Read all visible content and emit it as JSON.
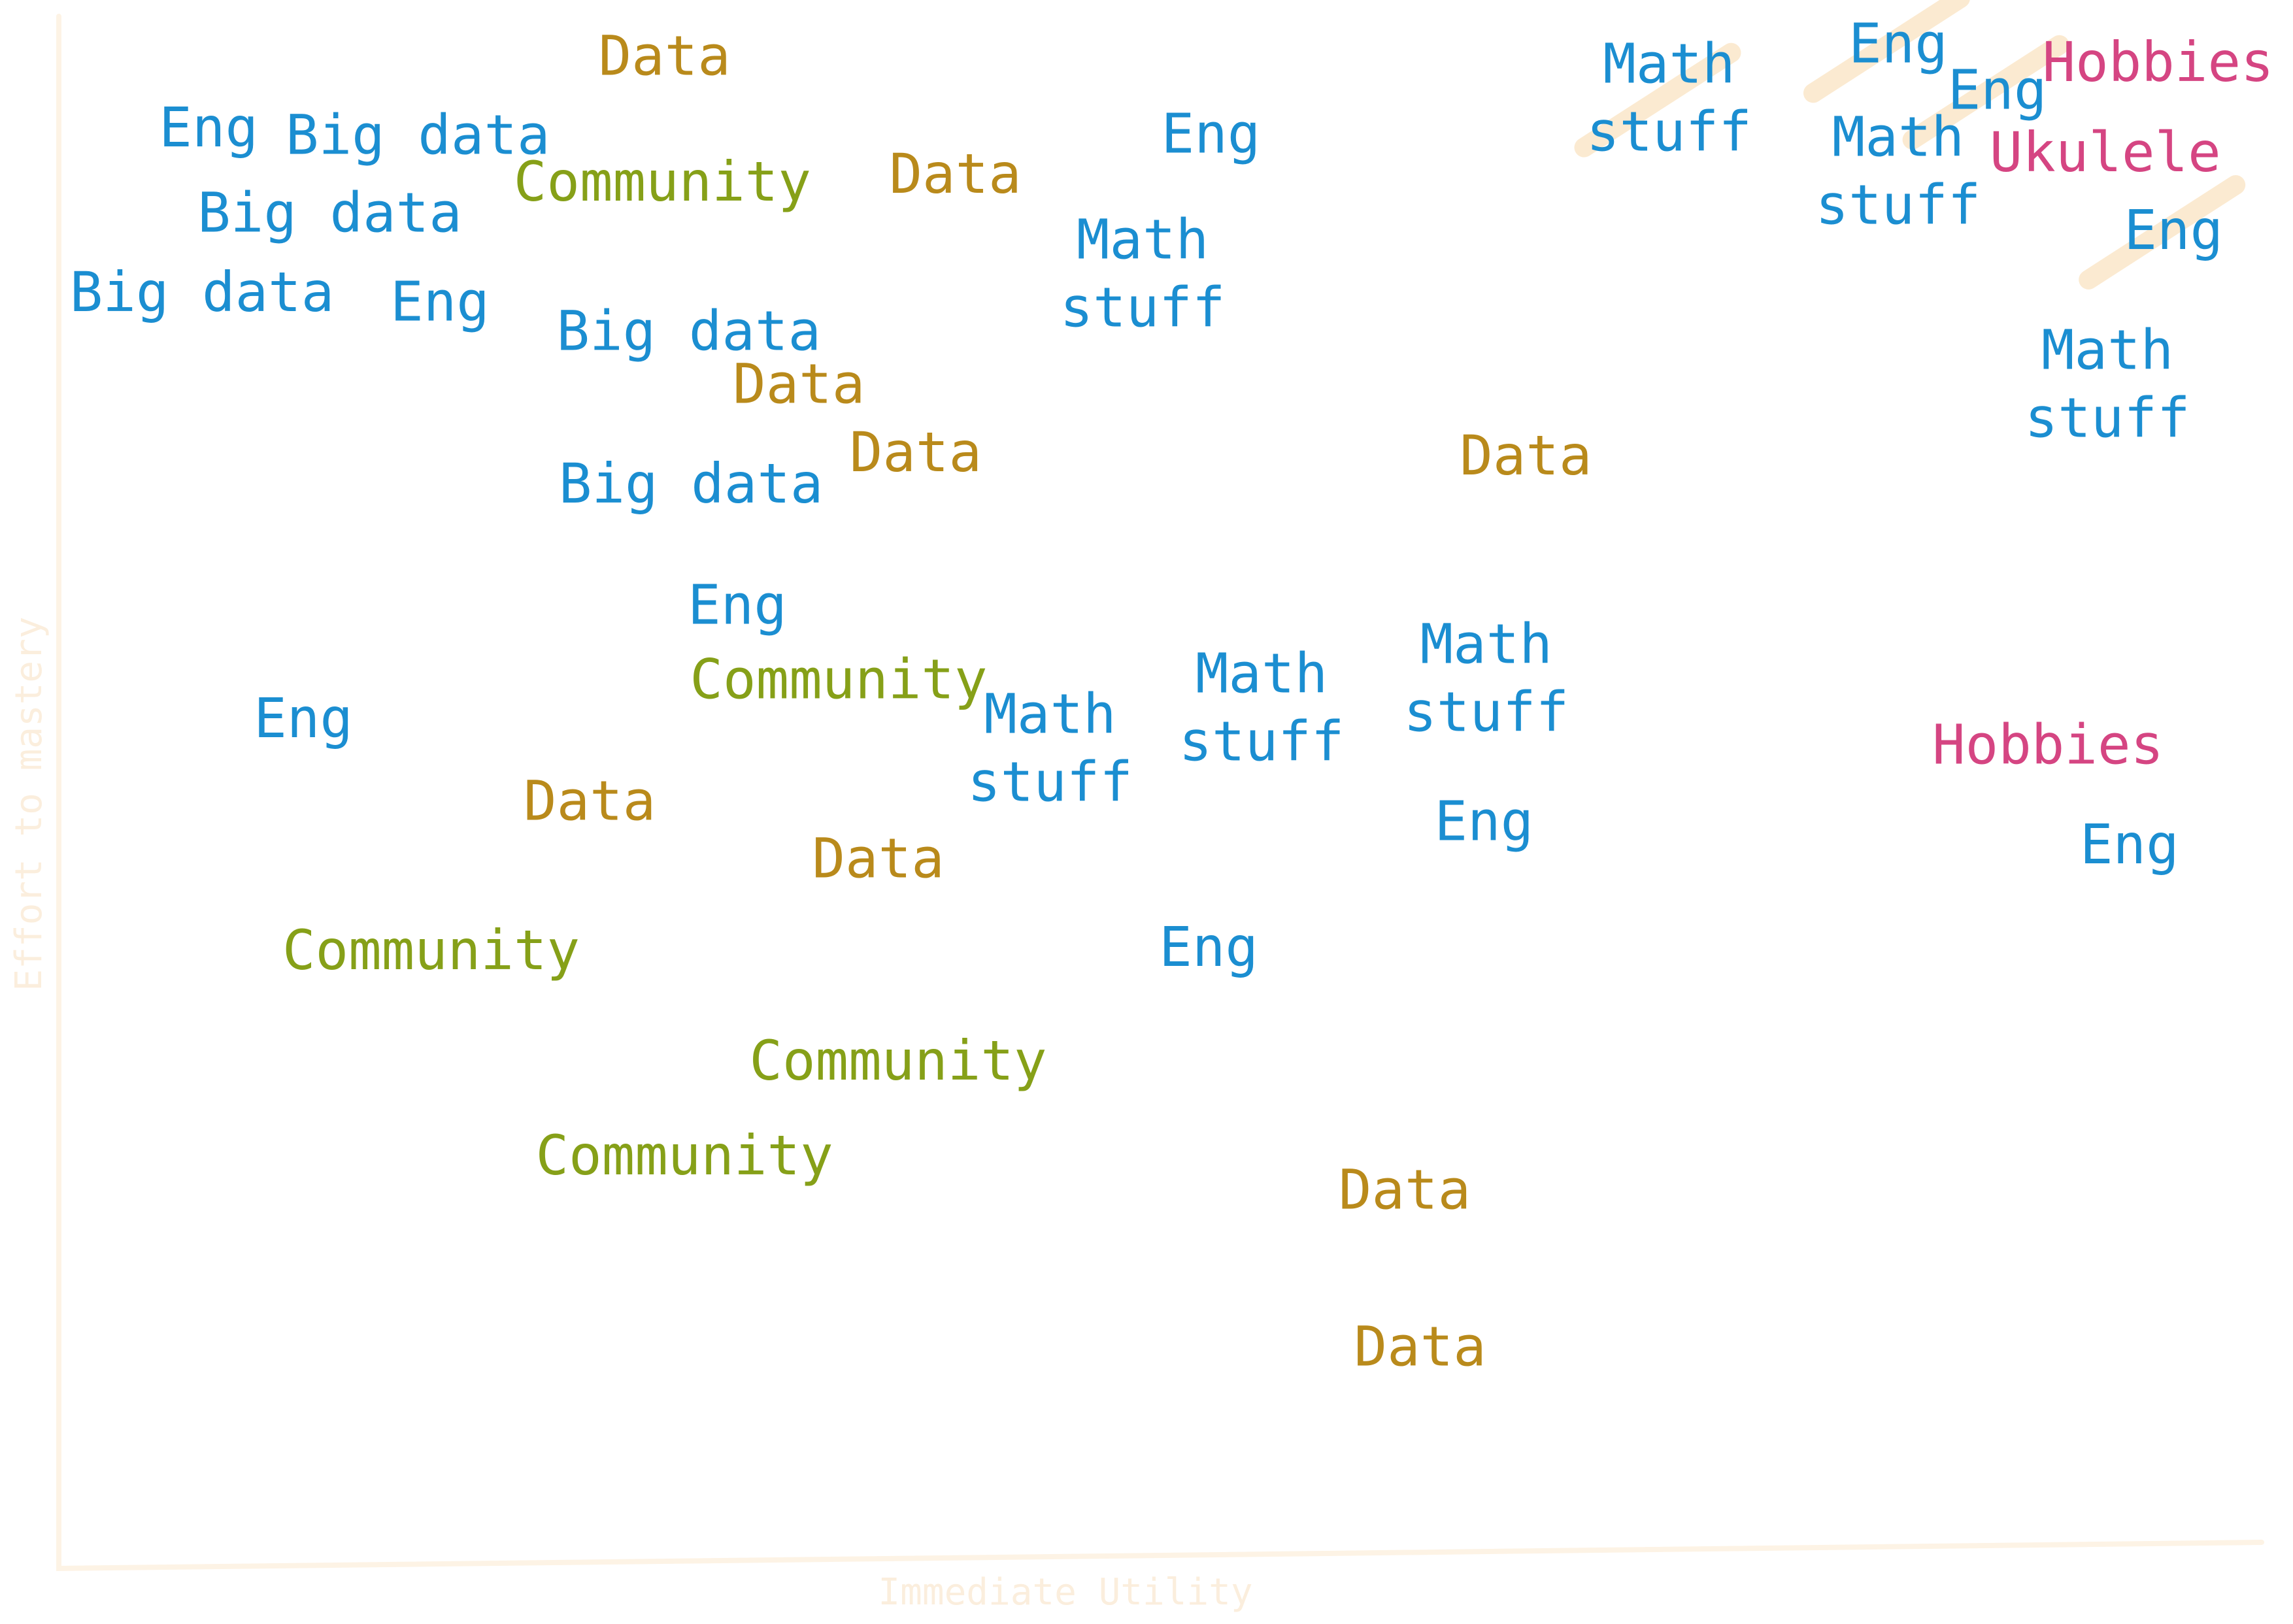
{
  "chart_data": {
    "type": "scatter",
    "title": "",
    "xlabel": "Immediate Utility",
    "ylabel": "Effort to mastery",
    "xlim": [
      0,
      100
    ],
    "ylim": [
      0,
      100
    ],
    "grid": false,
    "legend": "none",
    "colors": {
      "Eng": "#1b8ed1",
      "Big data": "#1b8ed1",
      "Math stuff": "#1b8ed1",
      "Data": "#b98a1b",
      "Community": "#86a018",
      "Hobbies": "#d54582",
      "Ukulele": "#d54582",
      "axis": "#fdf3e5",
      "highlight": "#fbe6c6"
    },
    "points": [
      {
        "label": "Data",
        "x": 27.5,
        "y": 97.0
      },
      {
        "label": "Eng",
        "x": 6.8,
        "y": 92.4
      },
      {
        "label": "Big data",
        "x": 16.3,
        "y": 91.9
      },
      {
        "label": "Community",
        "x": 27.4,
        "y": 88.9
      },
      {
        "label": "Data",
        "x": 40.7,
        "y": 89.4
      },
      {
        "label": "Eng",
        "x": 52.3,
        "y": 92.0
      },
      {
        "label": "Math stuff",
        "x": 73.1,
        "y": 94.3,
        "highlighted": true
      },
      {
        "label": "Eng",
        "x": 83.5,
        "y": 97.8,
        "highlighted": true
      },
      {
        "label": "Eng",
        "x": 88.0,
        "y": 94.8,
        "highlighted": true
      },
      {
        "label": "Hobbies",
        "x": 95.3,
        "y": 96.6
      },
      {
        "label": "Big data",
        "x": 12.3,
        "y": 86.9
      },
      {
        "label": "Math stuff",
        "x": 49.2,
        "y": 83.0
      },
      {
        "label": "Math stuff",
        "x": 83.5,
        "y": 89.6
      },
      {
        "label": "Ukulele",
        "x": 92.9,
        "y": 90.8
      },
      {
        "label": "Eng",
        "x": 96.0,
        "y": 85.8,
        "highlighted": true
      },
      {
        "label": "Big data",
        "x": 6.5,
        "y": 81.8
      },
      {
        "label": "Eng",
        "x": 17.3,
        "y": 81.2
      },
      {
        "label": "Big data",
        "x": 28.6,
        "y": 79.3
      },
      {
        "label": "Data",
        "x": 33.6,
        "y": 75.9
      },
      {
        "label": "Data",
        "x": 38.9,
        "y": 71.5
      },
      {
        "label": "Data",
        "x": 66.6,
        "y": 71.3
      },
      {
        "label": "Big data",
        "x": 28.7,
        "y": 69.5
      },
      {
        "label": "Math stuff",
        "x": 93.0,
        "y": 75.9
      },
      {
        "label": "Eng",
        "x": 30.8,
        "y": 61.7
      },
      {
        "label": "Community",
        "x": 35.4,
        "y": 56.9
      },
      {
        "label": "Eng",
        "x": 11.1,
        "y": 54.4
      },
      {
        "label": "Math stuff",
        "x": 45.0,
        "y": 52.5
      },
      {
        "label": "Math stuff",
        "x": 54.6,
        "y": 55.1
      },
      {
        "label": "Math stuff",
        "x": 64.8,
        "y": 57.0
      },
      {
        "label": "Hobbies",
        "x": 90.3,
        "y": 52.7
      },
      {
        "label": "Data",
        "x": 24.1,
        "y": 49.1
      },
      {
        "label": "Eng",
        "x": 64.7,
        "y": 47.8
      },
      {
        "label": "Data",
        "x": 37.2,
        "y": 45.4
      },
      {
        "label": "Eng",
        "x": 94.0,
        "y": 46.3
      },
      {
        "label": "Community",
        "x": 16.9,
        "y": 39.5
      },
      {
        "label": "Eng",
        "x": 52.2,
        "y": 39.7
      },
      {
        "label": "Community",
        "x": 38.1,
        "y": 32.4
      },
      {
        "label": "Community",
        "x": 28.4,
        "y": 26.3
      },
      {
        "label": "Data",
        "x": 61.1,
        "y": 24.1
      },
      {
        "label": "Data",
        "x": 61.8,
        "y": 14.0
      }
    ]
  }
}
